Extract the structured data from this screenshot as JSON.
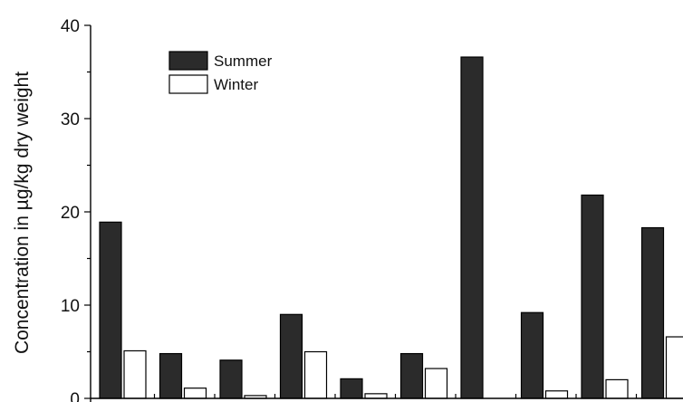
{
  "chart_data": {
    "type": "bar",
    "ylabel": "Concentration   in µg/kg  dry weight",
    "ylim": [
      0,
      40
    ],
    "yticks": [
      0,
      10,
      20,
      30,
      40
    ],
    "grid": false,
    "legend_position": "top-left",
    "categories": [
      "",
      "",
      "",
      "",
      "",
      "",
      "",
      "",
      "",
      ""
    ],
    "series": [
      {
        "name": "Summer",
        "color": "#2b2b2b",
        "values": [
          18.9,
          4.8,
          4.1,
          9.0,
          2.1,
          4.8,
          36.6,
          9.2,
          21.8,
          18.3
        ]
      },
      {
        "name": "Winter",
        "color": "#ffffff",
        "values": [
          5.1,
          1.1,
          0.3,
          5.0,
          0.5,
          3.2,
          0,
          0.8,
          2.0,
          6.6
        ]
      }
    ]
  }
}
